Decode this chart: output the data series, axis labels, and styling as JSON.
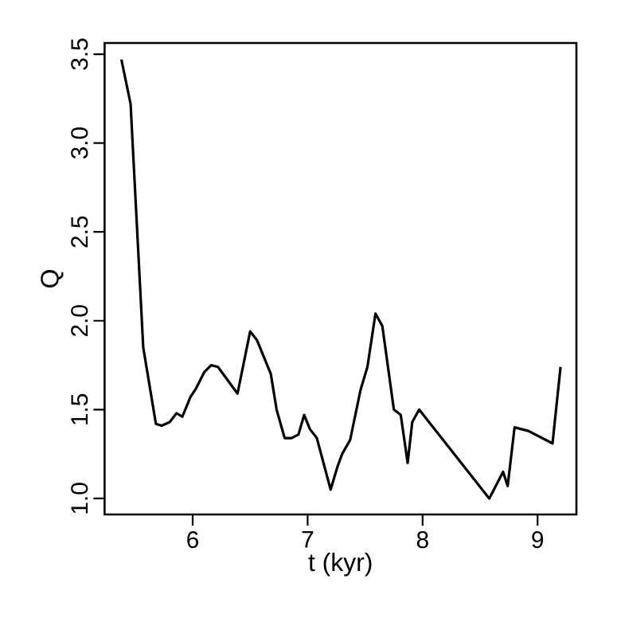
{
  "chart_data": {
    "type": "line",
    "xlabel": "t (kyr)",
    "ylabel": "Q",
    "xlim": [
      5.234,
      9.338
    ],
    "ylim": [
      0.91,
      3.563
    ],
    "xticks": [
      6,
      7,
      8,
      9
    ],
    "yticks": [
      {
        "value": 1.0,
        "label": "1.0"
      },
      {
        "value": 1.5,
        "label": "1.5"
      },
      {
        "value": 2.0,
        "label": "2.0"
      },
      {
        "value": 2.5,
        "label": "2.5"
      },
      {
        "value": 3.0,
        "label": "3.0"
      },
      {
        "value": 3.5,
        "label": "3.5"
      }
    ],
    "marker": "none",
    "line_style": "solid",
    "series": [
      {
        "color": "#000000",
        "x": [
          5.38,
          5.46,
          5.57,
          5.68,
          5.73,
          5.8,
          5.86,
          5.91,
          5.98,
          6.03,
          6.1,
          6.16,
          6.22,
          6.39,
          6.5,
          6.56,
          6.68,
          6.73,
          6.8,
          6.86,
          6.92,
          6.97,
          7.02,
          7.08,
          7.2,
          7.26,
          7.3,
          7.37,
          7.46,
          7.52,
          7.59,
          7.65,
          7.75,
          7.81,
          7.87,
          7.91,
          7.97,
          8.58,
          8.7,
          8.74,
          8.8,
          8.92,
          9.13,
          9.2
        ],
        "values": [
          3.47,
          3.22,
          1.85,
          1.42,
          1.41,
          1.43,
          1.48,
          1.46,
          1.57,
          1.62,
          1.71,
          1.75,
          1.74,
          1.59,
          1.94,
          1.89,
          1.7,
          1.5,
          1.34,
          1.34,
          1.36,
          1.47,
          1.39,
          1.34,
          1.05,
          1.18,
          1.25,
          1.33,
          1.61,
          1.74,
          2.04,
          1.97,
          1.5,
          1.47,
          1.2,
          1.43,
          1.5,
          1.0,
          1.15,
          1.07,
          1.4,
          1.38,
          1.31,
          1.74
        ]
      }
    ]
  }
}
